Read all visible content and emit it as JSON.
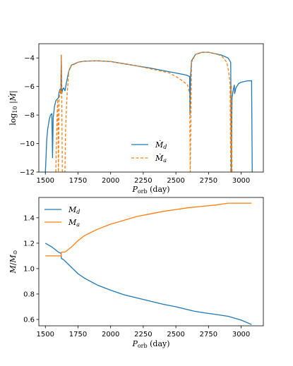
{
  "colors": {
    "blue": "#1f77b4",
    "orange": "#ff7f0e"
  },
  "chart_data": [
    {
      "type": "line",
      "xlabel": "P_orb (day)",
      "ylabel": "log10|Ṁ|",
      "xlim": [
        1450,
        3170
      ],
      "ylim": [
        -12,
        -3
      ],
      "xticks": [
        1500,
        1750,
        2000,
        2250,
        2500,
        2750,
        3000
      ],
      "yticks": [
        -12,
        -10,
        -8,
        -6,
        -4
      ],
      "legend_position": "lower-center",
      "series": [
        {
          "name": "Ṁd",
          "style": "solid",
          "color": "#1f77b4",
          "points": [
            [
              1500,
              -12
            ],
            [
              1505,
              -11
            ],
            [
              1510,
              -9.8
            ],
            [
              1518,
              -9
            ],
            [
              1530,
              -8.3
            ],
            [
              1540,
              -8
            ],
            [
              1550,
              -7.9
            ],
            [
              1555,
              -11
            ],
            [
              1560,
              -8.2
            ],
            [
              1570,
              -7.4
            ],
            [
              1580,
              -7
            ],
            [
              1590,
              -6.9
            ],
            [
              1600,
              -6.8
            ],
            [
              1605,
              -6.4
            ],
            [
              1612,
              -6.2
            ],
            [
              1618,
              -6.5
            ],
            [
              1622,
              -3.8
            ],
            [
              1626,
              -6.5
            ],
            [
              1632,
              -6.2
            ],
            [
              1640,
              -6.1
            ],
            [
              1650,
              -6.3
            ],
            [
              1660,
              -5.8
            ],
            [
              1680,
              -4.9
            ],
            [
              1700,
              -4.5
            ],
            [
              1750,
              -4.3
            ],
            [
              1800,
              -4.22
            ],
            [
              1900,
              -4.2
            ],
            [
              2000,
              -4.25
            ],
            [
              2100,
              -4.4
            ],
            [
              2200,
              -4.55
            ],
            [
              2300,
              -4.7
            ],
            [
              2400,
              -4.88
            ],
            [
              2500,
              -5.05
            ],
            [
              2580,
              -5.2
            ],
            [
              2605,
              -5.3
            ],
            [
              2608,
              -8
            ],
            [
              2612,
              -5.3
            ],
            [
              2620,
              -4.2
            ],
            [
              2650,
              -3.75
            ],
            [
              2700,
              -3.6
            ],
            [
              2750,
              -3.6
            ],
            [
              2800,
              -3.7
            ],
            [
              2850,
              -3.8
            ],
            [
              2900,
              -4.0
            ],
            [
              2920,
              -4.3
            ],
            [
              2925,
              -12
            ],
            [
              2930,
              -6.8
            ],
            [
              2940,
              -6.2
            ],
            [
              2948,
              -5.9
            ],
            [
              2950,
              -6.5
            ],
            [
              2960,
              -6.1
            ],
            [
              2980,
              -5.8
            ],
            [
              3000,
              -5.7
            ],
            [
              3050,
              -5.6
            ],
            [
              3080,
              -5.6
            ],
            [
              3085,
              -12
            ]
          ]
        },
        {
          "name": "Ṁa",
          "style": "dashed",
          "color": "#ff7f0e",
          "points": [
            [
              1580,
              -12
            ],
            [
              1590,
              -8
            ],
            [
              1595,
              -6.9
            ],
            [
              1600,
              -12
            ],
            [
              1605,
              -7
            ],
            [
              1612,
              -6.2
            ],
            [
              1618,
              -6.5
            ],
            [
              1622,
              -3.8
            ],
            [
              1626,
              -7
            ],
            [
              1630,
              -12
            ],
            [
              1650,
              -12
            ],
            [
              1655,
              -9
            ],
            [
              1665,
              -6.8
            ],
            [
              1680,
              -4.9
            ],
            [
              1700,
              -4.55
            ],
            [
              1750,
              -4.3
            ],
            [
              1800,
              -4.22
            ],
            [
              1900,
              -4.2
            ],
            [
              2000,
              -4.25
            ],
            [
              2100,
              -4.4
            ],
            [
              2200,
              -4.55
            ],
            [
              2300,
              -4.75
            ],
            [
              2400,
              -4.95
            ],
            [
              2450,
              -5.05
            ],
            [
              2500,
              -5.3
            ],
            [
              2550,
              -5.6
            ],
            [
              2590,
              -5.9
            ],
            [
              2605,
              -6.5
            ],
            [
              2610,
              -12
            ],
            [
              2620,
              -4.3
            ],
            [
              2650,
              -3.75
            ],
            [
              2700,
              -3.6
            ],
            [
              2750,
              -3.6
            ],
            [
              2800,
              -3.7
            ],
            [
              2850,
              -3.85
            ],
            [
              2890,
              -4.3
            ],
            [
              2905,
              -5.0
            ],
            [
              2915,
              -5.8
            ],
            [
              2920,
              -12
            ],
            [
              2925,
              -5.9
            ],
            [
              2930,
              -12
            ]
          ]
        }
      ]
    },
    {
      "type": "line",
      "xlabel": "P_orb (day)",
      "ylabel": "M/M☉",
      "xlim": [
        1450,
        3170
      ],
      "ylim": [
        0.55,
        1.56
      ],
      "xticks": [
        1500,
        1750,
        2000,
        2250,
        2500,
        2750,
        3000
      ],
      "yticks": [
        0.6,
        0.8,
        1.0,
        1.2,
        1.4
      ],
      "legend_position": "upper-left",
      "series": [
        {
          "name": "Md",
          "style": "solid",
          "color": "#1f77b4",
          "points": [
            [
              1500,
              1.2
            ],
            [
              1550,
              1.17
            ],
            [
              1600,
              1.13
            ],
            [
              1620,
              1.12
            ],
            [
              1623,
              1.08
            ],
            [
              1640,
              1.07
            ],
            [
              1660,
              1.05
            ],
            [
              1700,
              1.01
            ],
            [
              1750,
              0.96
            ],
            [
              1800,
              0.925
            ],
            [
              1900,
              0.87
            ],
            [
              2000,
              0.83
            ],
            [
              2100,
              0.795
            ],
            [
              2200,
              0.77
            ],
            [
              2300,
              0.745
            ],
            [
              2400,
              0.72
            ],
            [
              2500,
              0.7
            ],
            [
              2600,
              0.675
            ],
            [
              2640,
              0.665
            ],
            [
              2700,
              0.655
            ],
            [
              2800,
              0.64
            ],
            [
              2900,
              0.625
            ],
            [
              3000,
              0.595
            ],
            [
              3080,
              0.56
            ]
          ]
        },
        {
          "name": "Ma",
          "style": "solid",
          "color": "#ff7f0e",
          "points": [
            [
              1500,
              1.1
            ],
            [
              1550,
              1.1
            ],
            [
              1600,
              1.1
            ],
            [
              1620,
              1.1
            ],
            [
              1623,
              1.13
            ],
            [
              1650,
              1.13
            ],
            [
              1700,
              1.17
            ],
            [
              1750,
              1.22
            ],
            [
              1800,
              1.26
            ],
            [
              1900,
              1.31
            ],
            [
              2000,
              1.35
            ],
            [
              2100,
              1.38
            ],
            [
              2200,
              1.41
            ],
            [
              2300,
              1.43
            ],
            [
              2400,
              1.45
            ],
            [
              2500,
              1.465
            ],
            [
              2600,
              1.48
            ],
            [
              2700,
              1.49
            ],
            [
              2800,
              1.5
            ],
            [
              2900,
              1.515
            ],
            [
              3000,
              1.515
            ],
            [
              3080,
              1.515
            ]
          ]
        }
      ]
    }
  ]
}
